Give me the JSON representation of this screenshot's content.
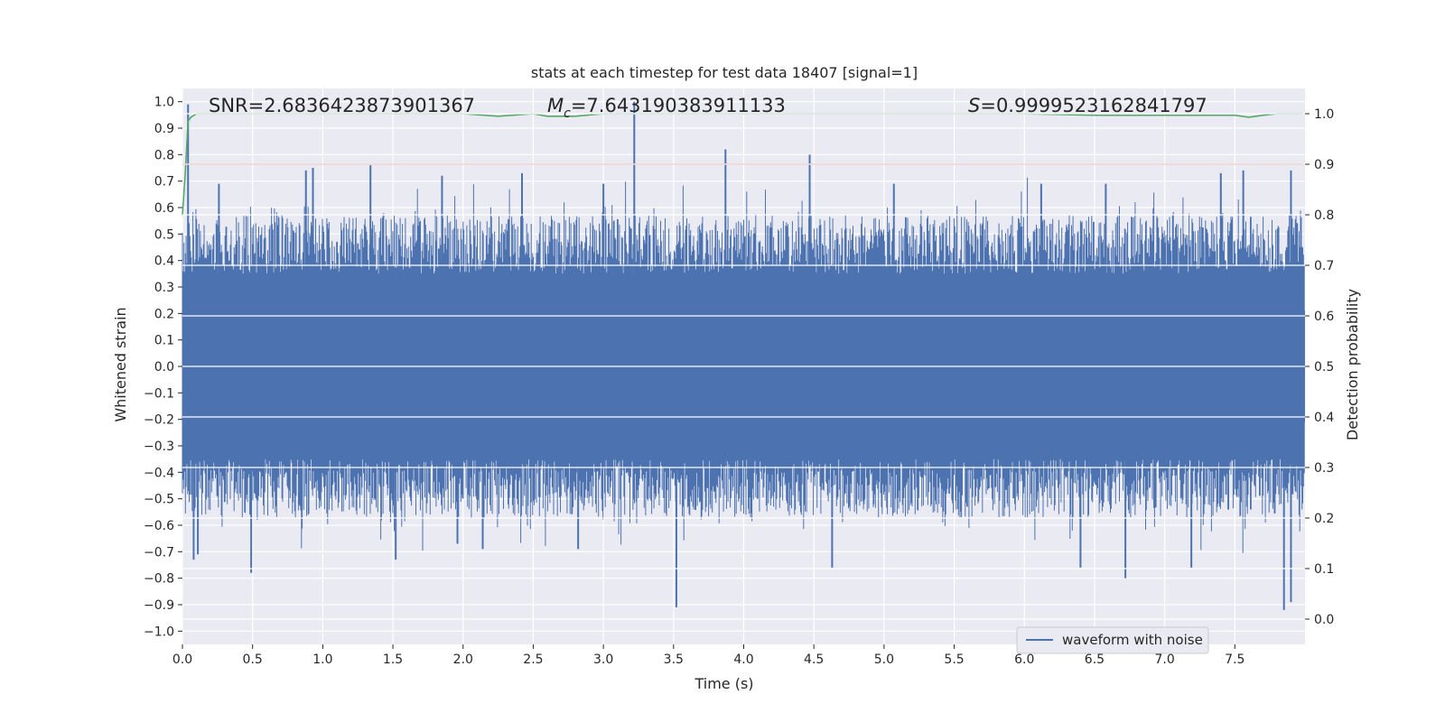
{
  "chart_data": {
    "type": "line",
    "title": "stats at each timestep for test data 18407 [signal=1]",
    "xlabel": "Time (s)",
    "ylabel": "Whitened strain",
    "ylabel_right": "Detection probability",
    "xlim": [
      0.0,
      8.0
    ],
    "ylim": [
      -1.05,
      1.05
    ],
    "ylim_right": [
      -0.05,
      1.05
    ],
    "x_ticks": [
      "0.0",
      "0.5",
      "1.0",
      "1.5",
      "2.0",
      "2.5",
      "3.0",
      "3.5",
      "4.0",
      "4.5",
      "5.0",
      "5.5",
      "6.0",
      "6.5",
      "7.0",
      "7.5"
    ],
    "y_ticks": [
      "1.0",
      "0.9",
      "0.8",
      "0.7",
      "0.6",
      "0.5",
      "0.4",
      "0.3",
      "0.2",
      "0.1",
      "0.0",
      "−0.1",
      "−0.2",
      "−0.3",
      "−0.4",
      "−0.5",
      "−0.6",
      "−0.7",
      "−0.8",
      "−0.9",
      "−1.0"
    ],
    "y_right_ticks": [
      "1.0",
      "0.9",
      "0.8",
      "0.7",
      "0.6",
      "0.5",
      "0.4",
      "0.3",
      "0.2",
      "0.1",
      "0.0"
    ],
    "grid": true,
    "legend_position": "lower-right",
    "annotations": {
      "snr": "SNR=2.6836423873901367",
      "mc_symbol": "M",
      "mc_sub": "c",
      "mc_value": "=7.643190383911133",
      "s_symbol": "S",
      "s_value": "=0.9999523162841797"
    },
    "series": [
      {
        "name": "waveform with noise",
        "axis": "left",
        "color": "#4c72b0",
        "render": "envelope",
        "x_range": [
          0.0,
          8.0
        ],
        "typical_upper": 0.35,
        "typical_lower": -0.35,
        "spikes": [
          {
            "x": 0.04,
            "y": 0.99
          },
          {
            "x": 0.26,
            "y": 0.69
          },
          {
            "x": 0.88,
            "y": 0.74
          },
          {
            "x": 0.93,
            "y": 0.75
          },
          {
            "x": 1.34,
            "y": 0.76
          },
          {
            "x": 1.85,
            "y": 0.72
          },
          {
            "x": 2.42,
            "y": 0.73
          },
          {
            "x": 3.0,
            "y": 0.69
          },
          {
            "x": 3.22,
            "y": 1.0
          },
          {
            "x": 3.87,
            "y": 0.82
          },
          {
            "x": 4.47,
            "y": 0.8
          },
          {
            "x": 5.07,
            "y": 0.69
          },
          {
            "x": 6.12,
            "y": 0.69
          },
          {
            "x": 6.58,
            "y": 0.69
          },
          {
            "x": 7.4,
            "y": 0.73
          },
          {
            "x": 7.56,
            "y": 0.74
          },
          {
            "x": 7.9,
            "y": 0.74
          },
          {
            "x": 0.08,
            "y": -0.73
          },
          {
            "x": 0.11,
            "y": -0.71
          },
          {
            "x": 0.49,
            "y": -0.78
          },
          {
            "x": 1.52,
            "y": -0.73
          },
          {
            "x": 1.96,
            "y": -0.67
          },
          {
            "x": 2.14,
            "y": -0.69
          },
          {
            "x": 2.82,
            "y": -0.69
          },
          {
            "x": 3.52,
            "y": -0.91
          },
          {
            "x": 4.63,
            "y": -0.76
          },
          {
            "x": 6.4,
            "y": -0.76
          },
          {
            "x": 6.72,
            "y": -0.8
          },
          {
            "x": 7.19,
            "y": -0.76
          },
          {
            "x": 7.85,
            "y": -0.92
          },
          {
            "x": 7.9,
            "y": -0.89
          }
        ]
      },
      {
        "name": "",
        "axis": "right",
        "color": "#55a868",
        "x": [
          0.0,
          0.02,
          0.04,
          0.06,
          0.1,
          0.2,
          0.5,
          1.0,
          1.5,
          2.0,
          2.25,
          2.5,
          2.6,
          2.8,
          3.0,
          3.5,
          4.0,
          5.0,
          6.0,
          6.5,
          7.0,
          7.5,
          7.6,
          7.7,
          7.8,
          7.99
        ],
        "y": [
          0.8,
          0.88,
          0.985,
          0.993,
          1.0,
          1.0,
          1.0,
          1.0,
          1.0,
          1.0,
          0.995,
          1.0,
          0.995,
          0.995,
          1.0,
          1.0,
          1.0,
          1.0,
          1.0,
          0.997,
          0.997,
          0.997,
          0.993,
          0.997,
          1.0,
          1.0
        ]
      },
      {
        "name": "",
        "axis": "right",
        "color": "#c44e52",
        "x": [
          0.0,
          7.99
        ],
        "y": [
          0.9,
          0.9
        ]
      }
    ]
  }
}
